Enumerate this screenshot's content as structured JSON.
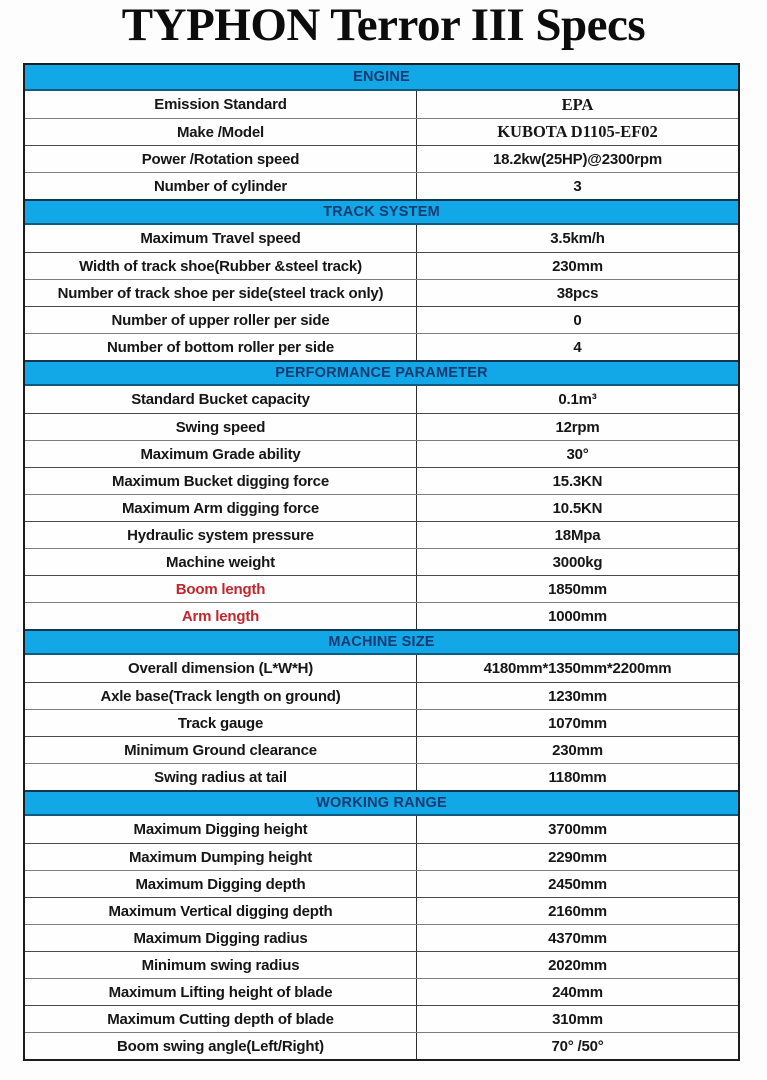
{
  "title": "TYPHON Terror III Specs",
  "colors": {
    "header_bg": "#12a7e6",
    "header_text": "#173a70",
    "red_label": "#c0272d",
    "body_text": "#161616",
    "outer_border": "#1c1c1c",
    "grid_line": "#7d7d7d"
  },
  "sections": [
    {
      "name": "ENGINE",
      "rows": [
        {
          "label": "Emission Standard",
          "value": "EPA",
          "serif": true
        },
        {
          "label": "Make /Model",
          "value": "KUBOTA D1105-EF02",
          "serif": true
        },
        {
          "label": "Power /Rotation speed",
          "value": "18.2kw(25HP)@2300rpm"
        },
        {
          "label": "Number of cylinder",
          "value": "3"
        }
      ]
    },
    {
      "name": "TRACK SYSTEM",
      "rows": [
        {
          "label": "Maximum Travel speed",
          "value": "3.5km/h"
        },
        {
          "label": "Width of track shoe(Rubber &steel track)",
          "value": "230mm"
        },
        {
          "label": "Number of track shoe per side(steel track only)",
          "value": "38pcs"
        },
        {
          "label": "Number of upper roller per side",
          "value": "0"
        },
        {
          "label": "Number of bottom roller per side",
          "value": "4"
        }
      ]
    },
    {
      "name": "PERFORMANCE PARAMETER",
      "rows": [
        {
          "label": "Standard Bucket capacity",
          "value": "0.1m³"
        },
        {
          "label": "Swing speed",
          "value": "12rpm"
        },
        {
          "label": "Maximum Grade ability",
          "value": "30°"
        },
        {
          "label": "Maximum Bucket digging force",
          "value": "15.3KN"
        },
        {
          "label": "Maximum Arm digging force",
          "value": "10.5KN"
        },
        {
          "label": "Hydraulic system pressure",
          "value": "18Mpa"
        },
        {
          "label": "Machine weight",
          "value": "3000kg"
        },
        {
          "label": "Boom length",
          "value": "1850mm",
          "red": true
        },
        {
          "label": "Arm length",
          "value": "1000mm",
          "red": true
        }
      ]
    },
    {
      "name": "MACHINE SIZE",
      "rows": [
        {
          "label": "Overall dimension (L*W*H)",
          "value": "4180mm*1350mm*2200mm"
        },
        {
          "label": "Axle base(Track length on ground)",
          "value": "1230mm"
        },
        {
          "label": "Track gauge",
          "value": "1070mm"
        },
        {
          "label": "Minimum Ground clearance",
          "value": "230mm"
        },
        {
          "label": "Swing radius at tail",
          "value": "1180mm"
        }
      ]
    },
    {
      "name": "WORKING RANGE",
      "rows": [
        {
          "label": "Maximum Digging height",
          "value": "3700mm"
        },
        {
          "label": "Maximum Dumping height",
          "value": "2290mm"
        },
        {
          "label": "Maximum Digging depth",
          "value": "2450mm"
        },
        {
          "label": "Maximum Vertical digging depth",
          "value": "2160mm"
        },
        {
          "label": "Maximum Digging radius",
          "value": "4370mm"
        },
        {
          "label": "Minimum swing radius",
          "value": "2020mm"
        },
        {
          "label": "Maximum Lifting height of blade",
          "value": "240mm"
        },
        {
          "label": "Maximum Cutting depth of blade",
          "value": "310mm"
        },
        {
          "label": "Boom swing angle(Left/Right)",
          "value": "70° /50°"
        }
      ]
    }
  ]
}
